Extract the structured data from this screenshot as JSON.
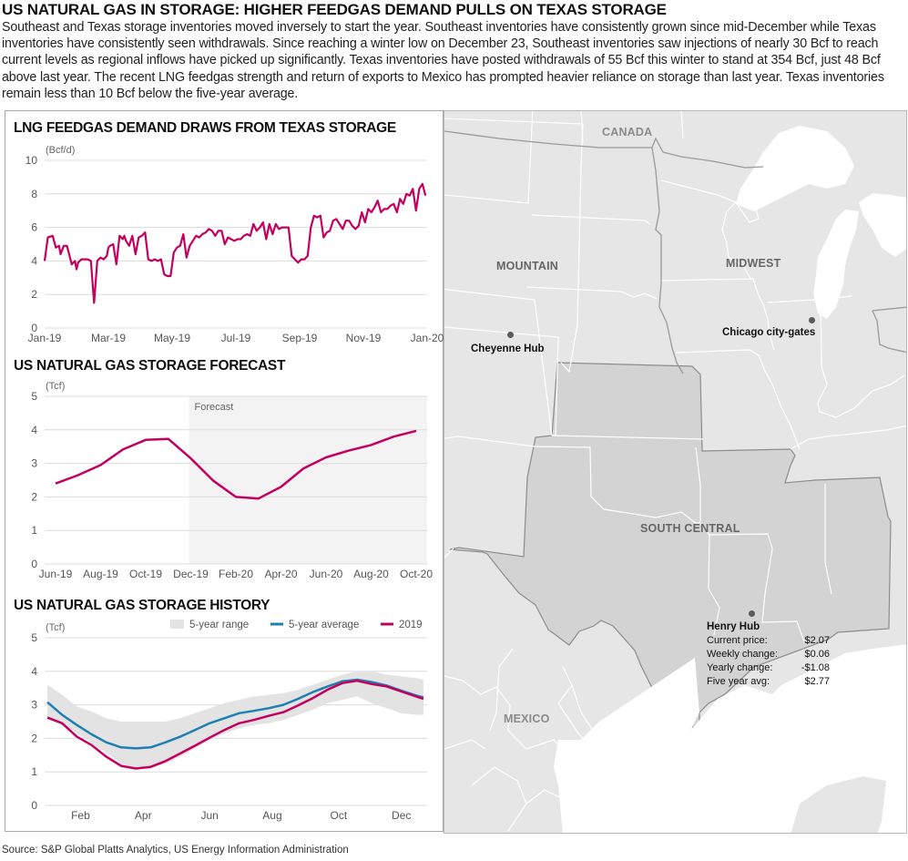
{
  "header": {
    "title": "US NATURAL GAS IN STORAGE: HIGHER FEEDGAS DEMAND PULLS ON TEXAS STORAGE",
    "intro": "Southeast and Texas storage inventories moved inversely to start the year. Southeast inventories have consistently grown since mid-December while Texas inventories have consistently seen withdrawals. Since reaching a winter low on December 23, Southeast inventories saw injections of nearly 30 Bcf to reach current levels as regional inflows have picked up significantly. Texas inventories have posted withdrawals of 55 Bcf this winter to stand at 354 Bcf, just 48 Bcf above last year. The recent LNG feedgas strength and return of exports to Mexico has prompted heavier reliance on storage than last year. Texas inventories remain less than 10 Bcf below the five-year average."
  },
  "colors": {
    "series_2019": "#c4005e",
    "five_year_avg": "#1f7fb3",
    "five_year_range": "#e3e3e3",
    "forecast_shade": "#f3f3f3",
    "gridline": "#dcdcdc",
    "map_land": "#e6e6e6",
    "map_south_central": "#d3d3d4",
    "map_water": "#ffffff"
  },
  "chart_data": [
    {
      "id": "lng-feedgas",
      "type": "line",
      "title": "LNG FEEDGAS DEMAND DRAWS FROM TEXAS STORAGE",
      "unit": "(Bcf/d)",
      "xlabel": "",
      "ylabel": "Bcf/d",
      "ylim": [
        0,
        10
      ],
      "yticks": [
        "0",
        "2",
        "4",
        "6",
        "8",
        "10"
      ],
      "xticks": [
        "Jan-19",
        "Mar-19",
        "May-19",
        "Jul-19",
        "Sep-19",
        "Nov-19",
        "Jan-20"
      ],
      "grid": true,
      "series": [
        {
          "name": "LNG feedgas demand",
          "color": "#c4005e",
          "x_months": [
            0,
            0.1,
            0.25,
            0.35,
            0.45,
            0.5,
            0.6,
            0.7,
            0.85,
            0.95,
            1.0,
            1.05,
            1.15,
            1.25,
            1.35,
            1.45,
            1.55,
            1.65,
            1.75,
            1.85,
            1.95,
            2.0,
            2.05,
            2.15,
            2.25,
            2.35,
            2.45,
            2.5,
            2.55,
            2.65,
            2.75,
            2.85,
            2.95,
            3.05,
            3.15,
            3.25,
            3.35,
            3.45,
            3.55,
            3.65,
            3.75,
            3.85,
            3.95,
            4.05,
            4.15,
            4.25,
            4.35,
            4.45,
            4.55,
            4.65,
            4.75,
            4.85,
            4.95,
            5.05,
            5.15,
            5.25,
            5.35,
            5.45,
            5.55,
            5.65,
            5.75,
            5.85,
            5.95,
            6.05,
            6.15,
            6.25,
            6.35,
            6.45,
            6.55,
            6.65,
            6.75,
            6.85,
            6.95,
            7.05,
            7.15,
            7.25,
            7.35,
            7.45,
            7.55,
            7.65,
            7.75,
            7.85,
            7.95,
            8.05,
            8.15,
            8.25,
            8.35,
            8.45,
            8.55,
            8.65,
            8.75,
            8.85,
            8.95,
            9.05,
            9.15,
            9.25,
            9.35,
            9.45,
            9.55,
            9.65,
            9.75,
            9.85,
            9.95,
            10.05,
            10.15,
            10.25,
            10.35,
            10.45,
            10.55,
            10.65,
            10.75,
            10.85,
            10.95,
            11.05,
            11.15,
            11.25,
            11.35,
            11.45,
            11.55,
            11.65,
            11.75,
            11.85,
            11.95
          ],
          "values": [
            4.0,
            5.4,
            5.5,
            4.8,
            4.9,
            4.4,
            4.9,
            4.9,
            3.8,
            4.0,
            3.5,
            3.9,
            4.1,
            4.1,
            4.1,
            4.0,
            1.5,
            4.0,
            4.2,
            4.1,
            4.3,
            4.8,
            4.9,
            5.0,
            3.8,
            5.5,
            5.3,
            5.5,
            5.2,
            4.9,
            5.5,
            4.4,
            5.4,
            5.5,
            5.7,
            4.1,
            4.0,
            4.1,
            4.0,
            4.1,
            3.2,
            3.1,
            3.1,
            4.5,
            4.8,
            4.9,
            5.6,
            4.2,
            4.9,
            5.2,
            5.5,
            5.4,
            5.6,
            5.7,
            5.9,
            5.8,
            5.5,
            5.8,
            5.8,
            5.0,
            5.4,
            5.3,
            5.2,
            5.3,
            5.3,
            5.5,
            5.6,
            5.5,
            6.2,
            5.8,
            6.0,
            6.3,
            5.3,
            6.2,
            5.6,
            6.2,
            5.9,
            6.0,
            6.0,
            6.0,
            4.3,
            4.1,
            3.9,
            4.1,
            4.1,
            4.3,
            6.0,
            6.7,
            6.6,
            6.7,
            5.4,
            5.7,
            5.8,
            6.4,
            6.5,
            6.2,
            5.9,
            6.4,
            6.4,
            6.1,
            5.9,
            6.1,
            6.9,
            6.3,
            7.1,
            6.9,
            7.2,
            7.6,
            6.9,
            7.1,
            7.1,
            7.3,
            7.4,
            6.9,
            7.7,
            7.4,
            8.0,
            7.9,
            8.3,
            7.0,
            8.3,
            8.6,
            7.9,
            8.5
          ],
          "note": "Values estimated from gridlines; daily series approximated at ~3-day resolution."
        }
      ]
    },
    {
      "id": "storage-forecast",
      "type": "line",
      "title": "US NATURAL GAS STORAGE FORECAST",
      "unit": "(Tcf)",
      "xlabel": "",
      "ylabel": "Tcf",
      "ylim": [
        0,
        5
      ],
      "yticks": [
        "0",
        "1",
        "2",
        "3",
        "4",
        "5"
      ],
      "xticks": [
        "Jun-19",
        "Aug-19",
        "Oct-19",
        "Dec-19",
        "Feb-20",
        "Apr-20",
        "Jun-20",
        "Aug-20",
        "Oct-20"
      ],
      "grid": true,
      "annotation": "Forecast",
      "forecast_start": "Dec-19",
      "categories": [
        "Jun-19",
        "Jul-19",
        "Aug-19",
        "Sep-19",
        "Oct-19",
        "Nov-19",
        "Dec-19",
        "Jan-20",
        "Feb-20",
        "Mar-20",
        "Apr-20",
        "May-20",
        "Jun-20",
        "Jul-20",
        "Aug-20",
        "Sep-20",
        "Oct-20"
      ],
      "series": [
        {
          "name": "Storage",
          "color": "#c4005e",
          "values": [
            2.4,
            2.65,
            2.95,
            3.42,
            3.7,
            3.73,
            3.15,
            2.48,
            2.0,
            1.95,
            2.3,
            2.85,
            3.18,
            3.38,
            3.55,
            3.8,
            3.97
          ]
        }
      ]
    },
    {
      "id": "storage-history",
      "type": "area",
      "title": "US NATURAL GAS STORAGE HISTORY",
      "unit": "(Tcf)",
      "xlabel": "",
      "ylabel": "Tcf",
      "ylim": [
        0,
        5
      ],
      "yticks": [
        "0",
        "1",
        "2",
        "3",
        "4",
        "5"
      ],
      "xticks": [
        "Feb",
        "Apr",
        "Jun",
        "Aug",
        "Oct",
        "Dec"
      ],
      "grid": true,
      "legend_position": "top-right",
      "legend": [
        "5-year range",
        "5-year average",
        "2019"
      ],
      "x_weeks": [
        0,
        2,
        4,
        6,
        8,
        10,
        12,
        14,
        16,
        18,
        20,
        22,
        24,
        26,
        28,
        30,
        32,
        34,
        36,
        38,
        40,
        42,
        44,
        46,
        48,
        50,
        51
      ],
      "series": [
        {
          "name": "5-year range",
          "color": "#e3e3e3",
          "low": [
            2.65,
            2.45,
            2.15,
            1.85,
            1.55,
            1.25,
            1.1,
            1.1,
            1.25,
            1.45,
            1.7,
            1.95,
            2.15,
            2.3,
            2.4,
            2.45,
            2.55,
            2.7,
            2.85,
            3.05,
            3.15,
            3.25,
            3.05,
            2.9,
            2.75,
            2.7,
            2.7
          ],
          "high": [
            3.6,
            3.3,
            2.95,
            2.8,
            2.6,
            2.5,
            2.5,
            2.5,
            2.5,
            2.6,
            2.75,
            2.9,
            3.05,
            3.15,
            3.25,
            3.3,
            3.35,
            3.45,
            3.6,
            3.75,
            3.9,
            4.0,
            4.0,
            3.9,
            3.85,
            3.8,
            3.75
          ]
        },
        {
          "name": "5-year average",
          "color": "#1f7fb3",
          "values": [
            3.08,
            2.7,
            2.4,
            2.12,
            1.88,
            1.73,
            1.7,
            1.73,
            1.88,
            2.05,
            2.25,
            2.45,
            2.6,
            2.75,
            2.82,
            2.9,
            3.0,
            3.18,
            3.38,
            3.55,
            3.7,
            3.75,
            3.68,
            3.58,
            3.42,
            3.28,
            3.22
          ]
        },
        {
          "name": "2019",
          "color": "#c4005e",
          "values": [
            2.62,
            2.45,
            2.05,
            1.8,
            1.45,
            1.18,
            1.1,
            1.15,
            1.32,
            1.55,
            1.78,
            2.02,
            2.25,
            2.45,
            2.55,
            2.67,
            2.78,
            2.98,
            3.2,
            3.45,
            3.65,
            3.72,
            3.62,
            3.55,
            3.4,
            3.25,
            3.18
          ]
        }
      ]
    }
  ],
  "map": {
    "region_labels": {
      "canada": "CANADA",
      "mountain": "MOUNTAIN",
      "midwest": "MIDWEST",
      "south_central": "SOUTH CENTRAL",
      "mexico": "MEXICO"
    },
    "hubs": {
      "cheyenne": "Cheyenne Hub",
      "chicago": "Chicago city-gates"
    },
    "henry_hub": {
      "title": "Henry Hub",
      "rows": [
        {
          "label": "Current price:",
          "value": "$2.07"
        },
        {
          "label": "Weekly change:",
          "value": "$0.06"
        },
        {
          "label": "Yearly change:",
          "value": "-$1.08"
        },
        {
          "label": "Five year avg:",
          "value": "$2.77"
        }
      ]
    }
  },
  "footer": {
    "source": "Source: S&P Global Platts Analytics, US Energy Information Administration"
  }
}
